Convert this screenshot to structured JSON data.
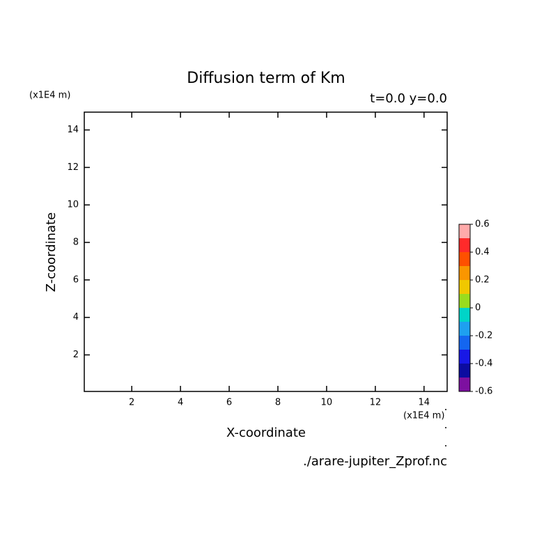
{
  "chart_data": {
    "type": "contour",
    "title": "Diffusion term of Km",
    "subtitle": "t=0.0 y=0.0",
    "x_label": "X-coordinate",
    "y_label": "Z-coordinate",
    "x_unit": "(x1E4 m)",
    "y_unit": "(x1E4 m)",
    "source": "./arare-jupiter_Zprof.nc",
    "xlim": [
      0.05,
      14.95
    ],
    "ylim": [
      0.05,
      14.95
    ],
    "xticks": [
      2,
      4,
      6,
      8,
      10,
      12,
      14
    ],
    "yticks": [
      2,
      4,
      6,
      8,
      10,
      12,
      14
    ],
    "colorbar": {
      "levels": [
        -0.6,
        -0.5,
        -0.4,
        -0.3,
        -0.2,
        -0.1,
        0,
        0.1,
        0.2,
        0.3,
        0.4,
        0.5,
        0.6
      ],
      "colors": [
        "#7d10a0",
        "#0c0ca0",
        "#1818e6",
        "#1466f0",
        "#1ea0f0",
        "#00d4c8",
        "#9adc1e",
        "#f0c800",
        "#fa9600",
        "#ff5000",
        "#ff2a2a",
        "#ffaaaa"
      ],
      "ticks": [
        -0.6,
        -0.4,
        -0.2,
        0,
        0.2,
        0.4,
        0.6
      ]
    }
  }
}
